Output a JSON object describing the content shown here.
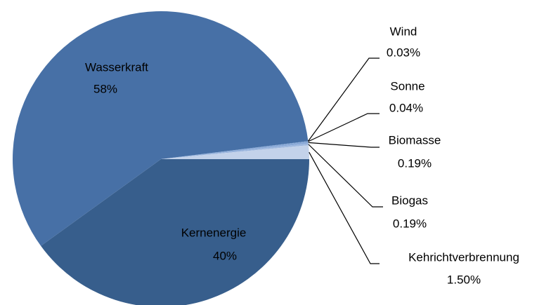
{
  "chart_data": {
    "type": "pie",
    "categories": [
      "Kernenergie",
      "Wasserkraft",
      "Wind",
      "Sonne",
      "Biomasse",
      "Biogas",
      "Kehrichtverbrennung"
    ],
    "values": [
      40,
      58,
      0.03,
      0.04,
      0.19,
      0.19,
      1.5
    ],
    "value_labels": [
      "40%",
      "58%",
      "0.03%",
      "0.04%",
      "0.19%",
      "0.19%",
      "1.50%"
    ],
    "colors": [
      "#375e8c",
      "#4770a6",
      "#5a86c2",
      "#7097cc",
      "#87a7d6",
      "#9db7de",
      "#c3d2ea"
    ]
  }
}
